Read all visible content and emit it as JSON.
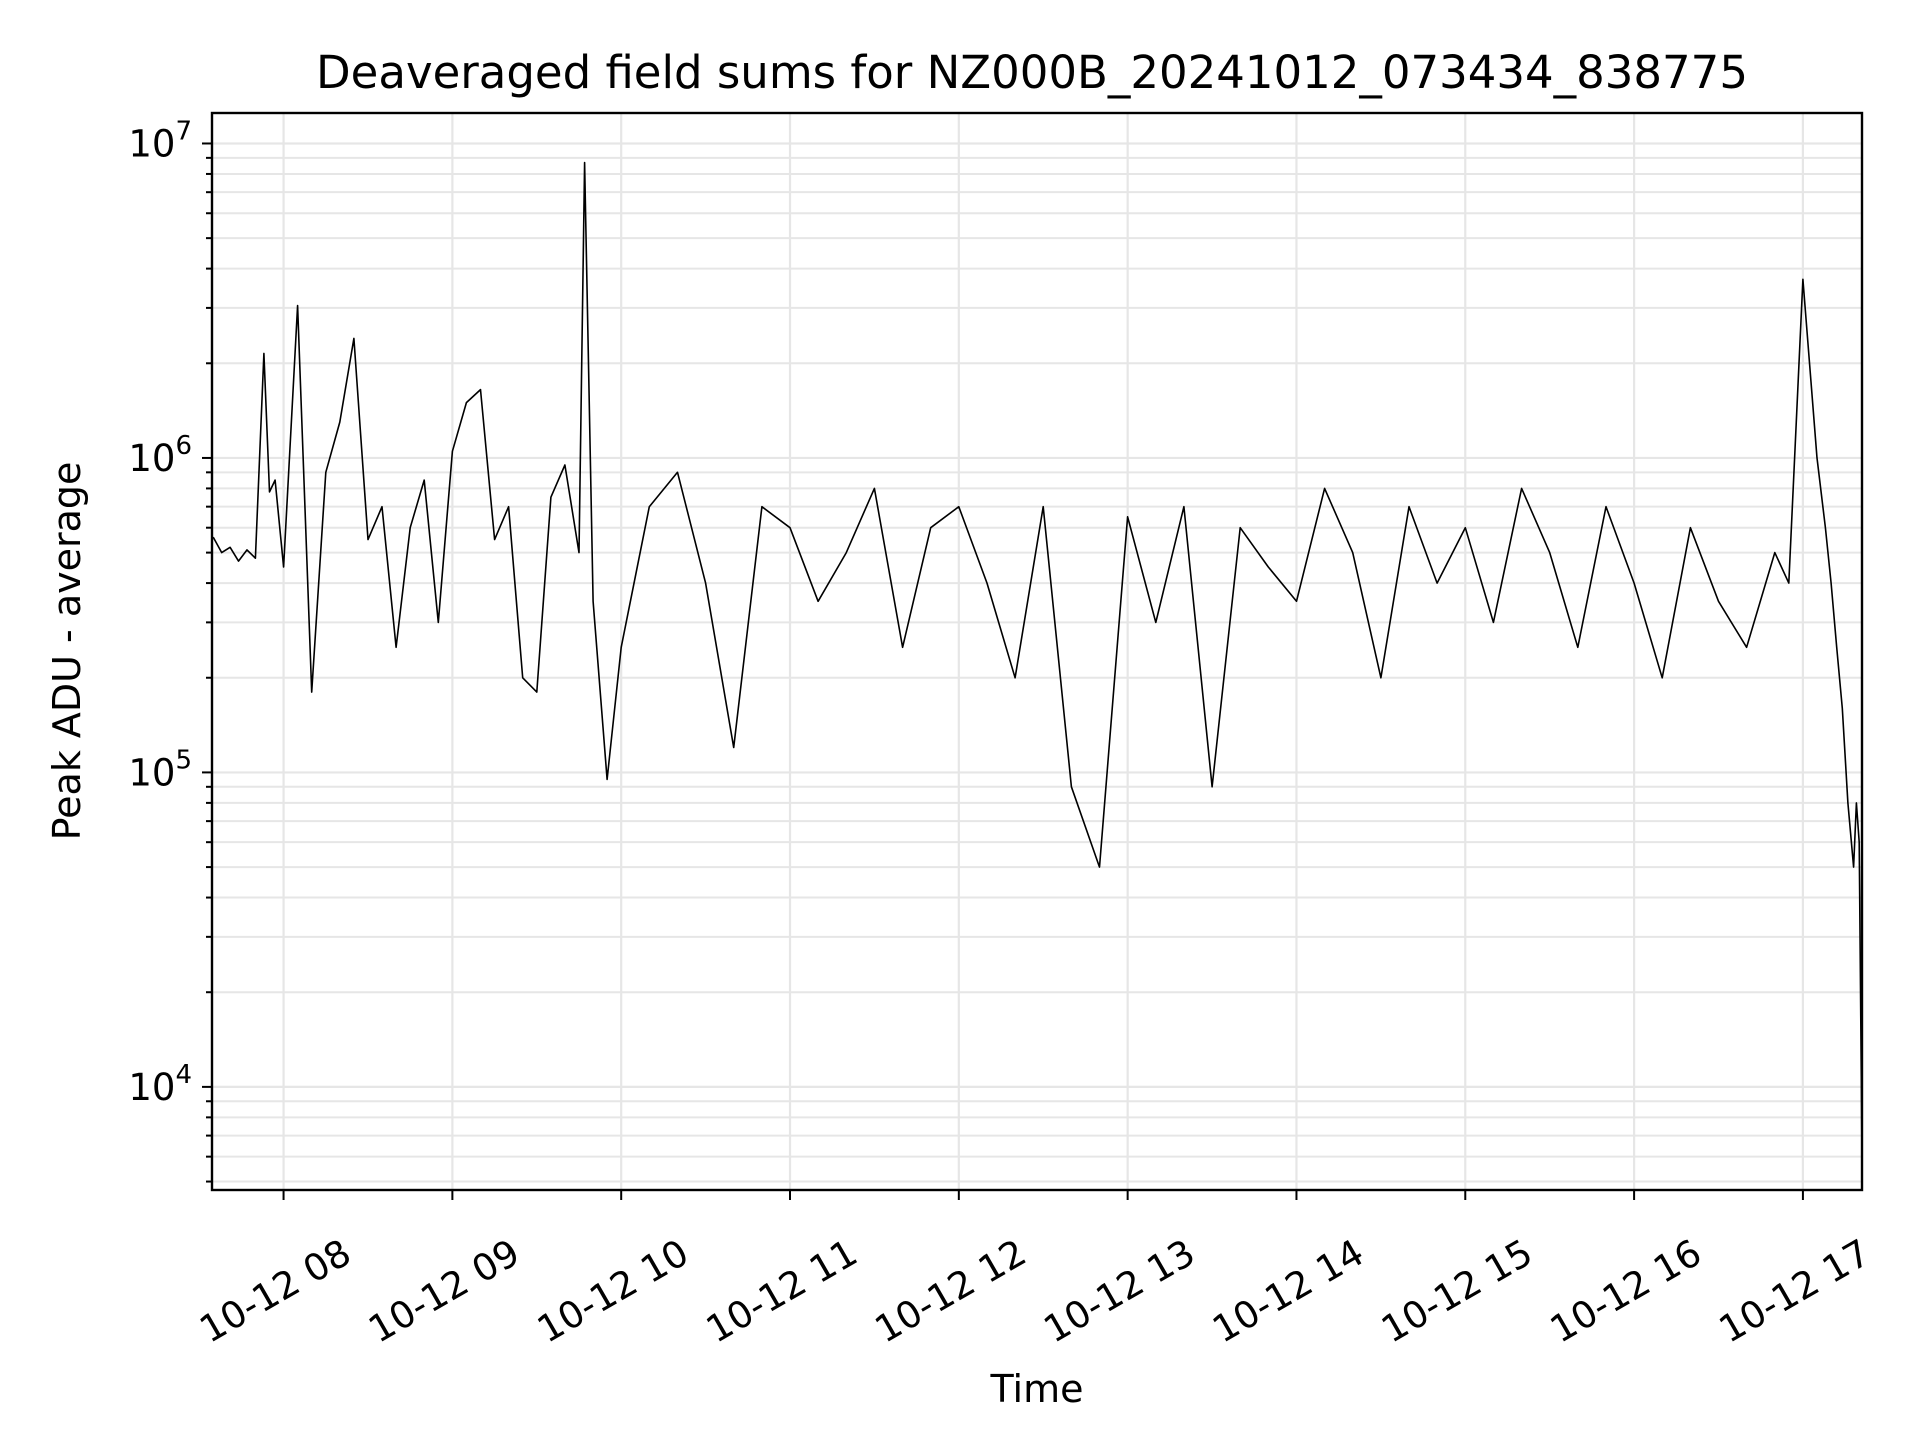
{
  "chart_data": {
    "type": "line",
    "title": "Deaveraged field sums for NZ000B_20241012_073434_838775",
    "xlabel": "Time",
    "ylabel": "Peak ADU - average",
    "yscale": "log",
    "ylim": [
      4700,
      12500000
    ],
    "xlim": [
      "2024-10-12 07:34:34",
      "2024-10-12 17:21:00"
    ],
    "grid": true,
    "legend": "none",
    "line_color": "#000000",
    "grid_color": "#e6e6e6",
    "x_ticks": [
      {
        "value": "2024-10-12 08:00",
        "label": "10-12 08"
      },
      {
        "value": "2024-10-12 09:00",
        "label": "10-12 09"
      },
      {
        "value": "2024-10-12 10:00",
        "label": "10-12 10"
      },
      {
        "value": "2024-10-12 11:00",
        "label": "10-12 11"
      },
      {
        "value": "2024-10-12 12:00",
        "label": "10-12 12"
      },
      {
        "value": "2024-10-12 13:00",
        "label": "10-12 13"
      },
      {
        "value": "2024-10-12 14:00",
        "label": "10-12 14"
      },
      {
        "value": "2024-10-12 15:00",
        "label": "10-12 15"
      },
      {
        "value": "2024-10-12 16:00",
        "label": "10-12 16"
      },
      {
        "value": "2024-10-12 17:00",
        "label": "10-12 17"
      }
    ],
    "y_ticks": [
      {
        "value": 10000,
        "base": "10",
        "exp": "4"
      },
      {
        "value": 100000,
        "base": "10",
        "exp": "5"
      },
      {
        "value": 1000000,
        "base": "10",
        "exp": "6"
      },
      {
        "value": 10000000,
        "base": "10",
        "exp": "7"
      }
    ],
    "series": [
      {
        "x": [
          "2024-10-12 07:35",
          "2024-10-12 07:38",
          "2024-10-12 07:41",
          "2024-10-12 07:44",
          "2024-10-12 07:47",
          "2024-10-12 07:50",
          "2024-10-12 07:53",
          "2024-10-12 07:55",
          "2024-10-12 07:57",
          "2024-10-12 08:00",
          "2024-10-12 08:05",
          "2024-10-12 08:10",
          "2024-10-12 08:15",
          "2024-10-12 08:20",
          "2024-10-12 08:25",
          "2024-10-12 08:30",
          "2024-10-12 08:35",
          "2024-10-12 08:40",
          "2024-10-12 08:45",
          "2024-10-12 08:50",
          "2024-10-12 08:55",
          "2024-10-12 09:00",
          "2024-10-12 09:05",
          "2024-10-12 09:10",
          "2024-10-12 09:15",
          "2024-10-12 09:20",
          "2024-10-12 09:25",
          "2024-10-12 09:30",
          "2024-10-12 09:35",
          "2024-10-12 09:40",
          "2024-10-12 09:45",
          "2024-10-12 09:47",
          "2024-10-12 09:50",
          "2024-10-12 09:55",
          "2024-10-12 10:00",
          "2024-10-12 10:10",
          "2024-10-12 10:20",
          "2024-10-12 10:30",
          "2024-10-12 10:40",
          "2024-10-12 10:50",
          "2024-10-12 11:00",
          "2024-10-12 11:10",
          "2024-10-12 11:20",
          "2024-10-12 11:30",
          "2024-10-12 11:40",
          "2024-10-12 11:50",
          "2024-10-12 12:00",
          "2024-10-12 12:10",
          "2024-10-12 12:20",
          "2024-10-12 12:30",
          "2024-10-12 12:40",
          "2024-10-12 12:50",
          "2024-10-12 13:00",
          "2024-10-12 13:10",
          "2024-10-12 13:20",
          "2024-10-12 13:30",
          "2024-10-12 13:40",
          "2024-10-12 13:50",
          "2024-10-12 14:00",
          "2024-10-12 14:10",
          "2024-10-12 14:20",
          "2024-10-12 14:30",
          "2024-10-12 14:40",
          "2024-10-12 14:50",
          "2024-10-12 15:00",
          "2024-10-12 15:10",
          "2024-10-12 15:20",
          "2024-10-12 15:30",
          "2024-10-12 15:40",
          "2024-10-12 15:50",
          "2024-10-12 16:00",
          "2024-10-12 16:10",
          "2024-10-12 16:20",
          "2024-10-12 16:30",
          "2024-10-12 16:40",
          "2024-10-12 16:50",
          "2024-10-12 16:55",
          "2024-10-12 17:00",
          "2024-10-12 17:05",
          "2024-10-12 17:08",
          "2024-10-12 17:10",
          "2024-10-12 17:12",
          "2024-10-12 17:14",
          "2024-10-12 17:16",
          "2024-10-12 17:18",
          "2024-10-12 17:19",
          "2024-10-12 17:20",
          "2024-10-12 17:21"
        ],
        "y": [
          560000,
          500000,
          520000,
          470000,
          510000,
          480000,
          2150000,
          780000,
          850000,
          450000,
          3050000,
          180000,
          900000,
          1300000,
          2400000,
          550000,
          700000,
          250000,
          600000,
          850000,
          300000,
          1050000,
          1500000,
          1650000,
          550000,
          700000,
          200000,
          180000,
          750000,
          950000,
          500000,
          8700000,
          350000,
          95000,
          250000,
          700000,
          900000,
          400000,
          120000,
          700000,
          600000,
          350000,
          500000,
          800000,
          250000,
          600000,
          700000,
          400000,
          200000,
          700000,
          90000,
          50000,
          650000,
          300000,
          700000,
          90000,
          600000,
          450000,
          350000,
          800000,
          500000,
          200000,
          700000,
          400000,
          600000,
          300000,
          800000,
          500000,
          250000,
          700000,
          400000,
          200000,
          600000,
          350000,
          250000,
          500000,
          400000,
          3700000,
          1000000,
          600000,
          400000,
          250000,
          160000,
          80000,
          50000,
          80000,
          60000,
          6000
        ]
      }
    ]
  }
}
